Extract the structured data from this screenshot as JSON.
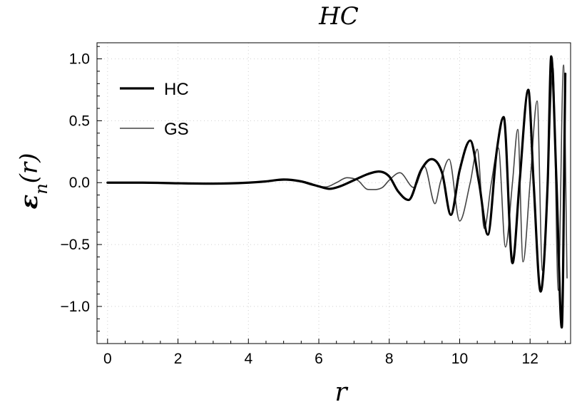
{
  "chart_data": {
    "type": "line",
    "title": "HC",
    "xlabel": "r",
    "ylabel": "ε_n(r)",
    "xlim": [
      -0.3,
      13.15
    ],
    "ylim": [
      -1.3,
      1.13
    ],
    "xticks": [
      0,
      2,
      4,
      6,
      8,
      10,
      12
    ],
    "xtick_labels": [
      "0",
      "2",
      "4",
      "6",
      "8",
      "10",
      "12"
    ],
    "yticks": [
      -1.0,
      -0.5,
      0.0,
      0.5,
      1.0
    ],
    "ytick_labels": [
      "−1.0",
      "−0.5",
      "0.0",
      "0.5",
      "1.0"
    ],
    "grid": true,
    "legend_position": "top-left",
    "series": [
      {
        "name": "HC",
        "color": "#000000",
        "line_width": "thick",
        "x": [
          0,
          1,
          2,
          3,
          4,
          4.5,
          5.0,
          5.5,
          6.0,
          6.3,
          6.6,
          7.0,
          7.4,
          7.7,
          8.0,
          8.25,
          8.55,
          8.9,
          9.2,
          9.5,
          9.75,
          10.0,
          10.3,
          10.55,
          10.8,
          11.05,
          11.25,
          11.5,
          11.7,
          11.95,
          12.1,
          12.3,
          12.5,
          12.6,
          12.75,
          12.9,
          13.0
        ],
        "y": [
          0,
          0,
          -0.005,
          -0.008,
          0.0,
          0.01,
          0.025,
          0.01,
          -0.03,
          -0.05,
          -0.03,
          0.02,
          0.07,
          0.09,
          0.05,
          -0.07,
          -0.14,
          0.1,
          0.19,
          0.08,
          -0.26,
          0.1,
          0.34,
          0.0,
          -0.42,
          0.25,
          0.53,
          -0.65,
          0.0,
          0.75,
          0.0,
          -0.88,
          0.0,
          1.02,
          0.0,
          -1.17,
          0.88
        ]
      },
      {
        "name": "GS",
        "color": "#444444",
        "line_width": "thin",
        "x": [
          0,
          1,
          2,
          3,
          4,
          4.5,
          5.0,
          5.4,
          5.8,
          6.2,
          6.5,
          6.8,
          7.1,
          7.4,
          7.8,
          8.0,
          8.3,
          8.7,
          9.0,
          9.3,
          9.45,
          9.7,
          10.0,
          10.3,
          10.5,
          10.7,
          10.9,
          11.1,
          11.3,
          11.5,
          11.65,
          11.8,
          12.0,
          12.2,
          12.35,
          12.5,
          12.65,
          12.8,
          12.95,
          13.05
        ],
        "y": [
          0,
          0,
          -0.003,
          -0.006,
          0.0,
          0.012,
          0.02,
          0.015,
          -0.02,
          -0.035,
          0.0,
          0.04,
          0.02,
          -0.055,
          -0.04,
          0.02,
          0.08,
          -0.04,
          0.13,
          -0.17,
          0.0,
          0.19,
          -0.31,
          0.0,
          0.27,
          -0.37,
          0.0,
          0.28,
          -0.52,
          0.0,
          0.43,
          -0.64,
          0.0,
          0.66,
          -0.71,
          0.0,
          0.93,
          -0.87,
          0.95,
          -0.77
        ]
      }
    ]
  }
}
